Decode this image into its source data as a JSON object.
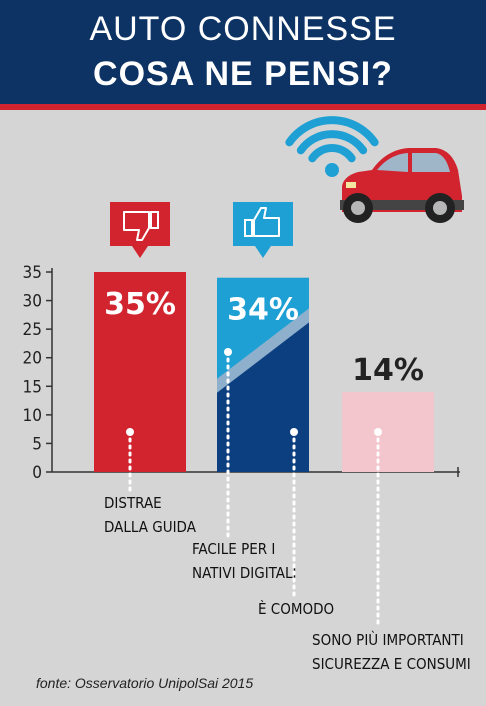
{
  "header": {
    "title_line1": "AUTO CONNESSE",
    "title_line2": "COSA NE PENSI?"
  },
  "colors": {
    "header_bg": "#0c3364",
    "header_stripe": "#d1242f",
    "background": "#d5d5d5",
    "red": "#d1242f",
    "light_blue": "#1fa0d4",
    "dark_blue": "#0c3f80",
    "pink": "#f2c6cc",
    "wifi": "#1fa0d4"
  },
  "icons": [
    "thumbs-down-icon",
    "thumbs-up-icon",
    "wifi-icon",
    "car-icon"
  ],
  "chart_data": {
    "type": "bar",
    "ylim": [
      0,
      35
    ],
    "yticks": [
      0,
      5,
      10,
      15,
      20,
      25,
      30,
      35
    ],
    "grid": false,
    "bars": [
      {
        "value_label": "35%",
        "value": 35,
        "color": "red",
        "icon": "thumbs-down-icon",
        "labels": [
          {
            "lines": [
              "DISTRAE",
              "DALLA GUIDA"
            ],
            "value": 35
          }
        ]
      },
      {
        "value_label": "34%",
        "value": 34,
        "color": "split",
        "icon": "thumbs-up-icon",
        "split": {
          "top_color": "light_blue",
          "bottom_color": "dark_blue"
        },
        "labels": [
          {
            "lines": [
              "FACILE PER I",
              "NATIVI DIGITALI"
            ]
          },
          {
            "lines": [
              "È COMODO"
            ]
          }
        ]
      },
      {
        "value_label": "14%",
        "value": 14,
        "color": "pink",
        "labels": [
          {
            "lines": [
              "SONO PIÙ IMPORTANTI",
              "SICUREZZA E CONSUMI"
            ]
          }
        ]
      }
    ]
  },
  "source": "fonte: Osservatorio UnipolSai 2015"
}
